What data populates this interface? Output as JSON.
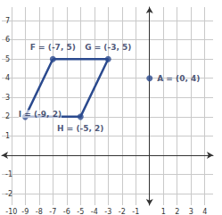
{
  "chart_data": {
    "type": "scatter",
    "points": [
      {
        "name": "F",
        "x": -7,
        "y": 5,
        "label": "F = (-7, 5)"
      },
      {
        "name": "G",
        "x": -3,
        "y": 5,
        "label": "G = (-3, 5)"
      },
      {
        "name": "H",
        "x": -5,
        "y": 2,
        "label": "H = (-5, 2)"
      },
      {
        "name": "I",
        "x": -9,
        "y": 2,
        "label": "I = (-9, 2)"
      },
      {
        "name": "A",
        "x": 0,
        "y": 4,
        "label": "A = (0, 4)"
      }
    ],
    "polygon": [
      "F",
      "G",
      "H",
      "I"
    ],
    "color": "#2b4a8e",
    "xlim": [
      -10.7,
      4.6
    ],
    "xticks": [
      -10,
      -9,
      -8,
      -7,
      -6,
      -5,
      -4,
      -3,
      -2,
      -1,
      1,
      2,
      3,
      4
    ],
    "ylim": [
      -2.6,
      7.7
    ],
    "yticks": [
      -2,
      -1,
      1,
      2,
      3,
      4,
      5,
      6,
      7
    ],
    "grid": true
  }
}
